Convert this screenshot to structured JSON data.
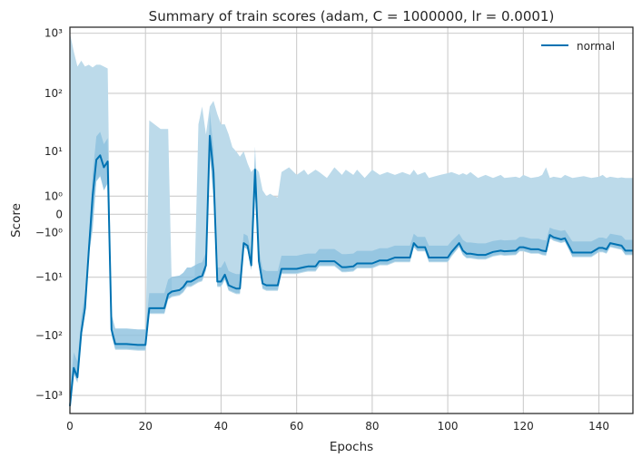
{
  "chart_data": {
    "type": "line",
    "title": "Summary of train scores (adam, C = 1000000, lr = 0.0001)",
    "xlabel": "Epochs",
    "ylabel": "Score",
    "xlim": [
      0,
      149
    ],
    "ylim_symlog": [
      -3.3,
      3.1
    ],
    "y_scale": "symlog",
    "grid": true,
    "legend_position": "top-right",
    "colors": {
      "line": "#0072b2",
      "band_outer": "#bcdaea",
      "band_inner": "#8cc0de",
      "grid": "#cccccc",
      "frame": "#262626"
    },
    "x_ticks": [
      {
        "value": 0,
        "label": "0"
      },
      {
        "value": 20,
        "label": "20"
      },
      {
        "value": 40,
        "label": "40"
      },
      {
        "value": 60,
        "label": "60"
      },
      {
        "value": 80,
        "label": "80"
      },
      {
        "value": 100,
        "label": "100"
      },
      {
        "value": 120,
        "label": "120"
      },
      {
        "value": 140,
        "label": "140"
      }
    ],
    "y_ticks": [
      {
        "value": 1000,
        "label": "10³"
      },
      {
        "value": 100,
        "label": "10²"
      },
      {
        "value": 10,
        "label": "10¹"
      },
      {
        "value": 1,
        "label": "10⁰"
      },
      {
        "value": 0,
        "label": "0"
      },
      {
        "value": -1,
        "label": "−10⁰"
      },
      {
        "value": -10,
        "label": "−10¹"
      },
      {
        "value": -100,
        "label": "−10²"
      },
      {
        "value": -1000,
        "label": "−10³"
      }
    ],
    "series": [
      {
        "name": "normal",
        "x": [
          0,
          1,
          2,
          3,
          4,
          5,
          6,
          7,
          8,
          9,
          10,
          11,
          12,
          13,
          15,
          18,
          20,
          21,
          24,
          25,
          26,
          27,
          29,
          30,
          31,
          32,
          33,
          34,
          35,
          36,
          37,
          38,
          39,
          40,
          41,
          42,
          43,
          44,
          45,
          46,
          47,
          48,
          49,
          50,
          51,
          52,
          53,
          54,
          55,
          56,
          58,
          60,
          62,
          63,
          65,
          66,
          68,
          70,
          72,
          73,
          75,
          76,
          78,
          80,
          82,
          84,
          86,
          88,
          90,
          91,
          92,
          94,
          95,
          98,
          100,
          101,
          103,
          104,
          105,
          106,
          108,
          110,
          112,
          114,
          115,
          118,
          119,
          120,
          122,
          124,
          125,
          126,
          127,
          128,
          130,
          131,
          133,
          136,
          138,
          140,
          141,
          142,
          143,
          145,
          146,
          147,
          149
        ],
        "mean": [
          -1500,
          -350,
          -500,
          -90,
          -35,
          -3,
          1,
          7,
          8.5,
          5,
          6.5,
          -80,
          -140,
          -140,
          -140,
          -145,
          -145,
          -35,
          -35,
          -35,
          -20,
          -18,
          -17,
          -15,
          -12,
          -12,
          -11,
          -10,
          -9.5,
          -6,
          19,
          4,
          -12,
          -12,
          -9,
          -14,
          -15,
          -16,
          -16,
          -2,
          -2.3,
          -6,
          4.5,
          -5,
          -13,
          -14,
          -14,
          -14,
          -14,
          -7,
          -7,
          -7,
          -6.5,
          -6.3,
          -6.3,
          -5,
          -5,
          -5,
          -6.5,
          -6.5,
          -6.3,
          -5.5,
          -5.5,
          -5.5,
          -4.8,
          -4.8,
          -4.2,
          -4.2,
          -4.2,
          -2,
          -2.5,
          -2.5,
          -4.2,
          -4.2,
          -4.2,
          -3.2,
          -2,
          -3,
          -3.5,
          -3.5,
          -3.7,
          -3.7,
          -3.2,
          -3,
          -3.1,
          -3,
          -2.5,
          -2.5,
          -2.8,
          -2.8,
          -3,
          -3.1,
          -1.2,
          -1.4,
          -1.6,
          -1.5,
          -3.3,
          -3.3,
          -3.3,
          -2.6,
          -2.6,
          -2.8,
          -2,
          -2.2,
          -2.3,
          -3,
          -3
        ]
      }
    ],
    "band_outer": {
      "x": [
        0,
        1,
        2,
        3,
        4,
        5,
        6,
        7,
        8,
        9,
        10,
        11,
        12,
        13,
        15,
        18,
        20,
        21,
        24,
        25,
        26,
        27,
        29,
        30,
        31,
        32,
        33,
        34,
        35,
        36,
        37,
        38,
        39,
        40,
        41,
        42,
        43,
        44,
        45,
        46,
        47,
        48,
        49,
        50,
        51,
        52,
        53,
        54,
        55,
        56,
        58,
        60,
        62,
        63,
        65,
        66,
        68,
        70,
        72,
        73,
        75,
        76,
        78,
        80,
        82,
        84,
        86,
        88,
        90,
        91,
        92,
        94,
        95,
        98,
        100,
        101,
        103,
        104,
        105,
        106,
        108,
        110,
        112,
        114,
        115,
        118,
        119,
        120,
        122,
        124,
        125,
        126,
        127,
        128,
        130,
        131,
        133,
        136,
        138,
        140,
        141,
        142,
        143,
        145,
        146,
        147,
        149
      ],
      "upper": [
        1000,
        500,
        280,
        350,
        280,
        300,
        270,
        300,
        300,
        280,
        260,
        -80,
        -140,
        -140,
        -140,
        -145,
        -145,
        35,
        25,
        25,
        25,
        -18,
        -17,
        -15,
        -12,
        -12,
        -11,
        30,
        60,
        20,
        60,
        75,
        45,
        30,
        30,
        20,
        12,
        10,
        8,
        10,
        6,
        4,
        5,
        4,
        1.5,
        1.0,
        1.2,
        1.0,
        0.9,
        4,
        5,
        3.5,
        4.5,
        3.5,
        4.5,
        4,
        3,
        5,
        3.5,
        4.5,
        3.5,
        4.5,
        3,
        4.5,
        3.5,
        4,
        3.5,
        4,
        3.5,
        4.5,
        3.5,
        4,
        3,
        3.5,
        3.8,
        4,
        3.5,
        3.8,
        3.5,
        4,
        3,
        3.5,
        3,
        3.5,
        3,
        3.2,
        3,
        3.5,
        3,
        3.2,
        3.5,
        5,
        3,
        3.2,
        3,
        3.5,
        3,
        3.3,
        3,
        3.2,
        3.5,
        3,
        3.2,
        3,
        3.1,
        3,
        3
      ]
    }
  }
}
